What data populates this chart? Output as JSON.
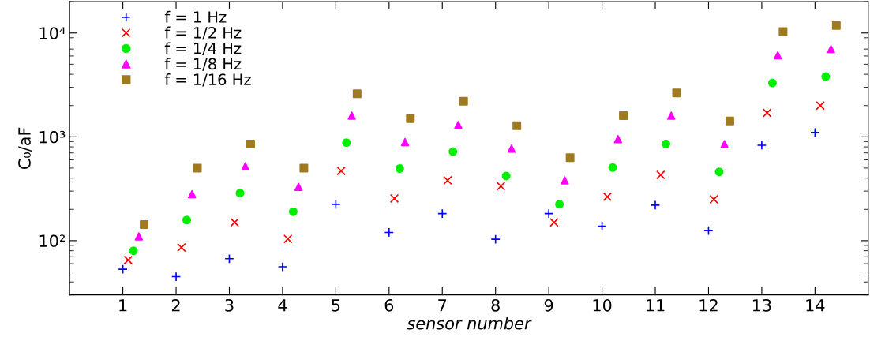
{
  "chart_data": {
    "type": "scatter",
    "xlabel": "sensor number",
    "ylabel": "C₀/aF",
    "log": "y",
    "xlim": [
      0,
      15
    ],
    "xticks": [
      1,
      2,
      3,
      4,
      5,
      6,
      7,
      8,
      9,
      10,
      11,
      12,
      13,
      14
    ],
    "ylim": [
      30,
      20000
    ],
    "yticks": [
      {
        "value": 100,
        "label": "10²"
      },
      {
        "value": 1000,
        "label": "10³"
      },
      {
        "value": 10000,
        "label": "10⁴"
      }
    ],
    "grid": false,
    "legend": "top left",
    "series": [
      {
        "name": "f = 1 Hz",
        "color": "#0000ff",
        "marker": "plus",
        "x": [
          1,
          2,
          3,
          4,
          5,
          6,
          7,
          8,
          9,
          10,
          11,
          12,
          13,
          14
        ],
        "values": [
          53,
          45,
          67,
          56,
          224,
          120,
          182,
          103,
          182,
          138,
          220,
          125,
          830,
          1100
        ]
      },
      {
        "name": "f = 1/2 Hz",
        "color": "#ff0000",
        "marker": "cross",
        "x": [
          1.1,
          2.1,
          3.1,
          4.1,
          5.1,
          6.1,
          7.1,
          8.1,
          9.1,
          10.1,
          11.1,
          12.1,
          13.1,
          14.1
        ],
        "values": [
          65,
          86,
          150,
          104,
          470,
          255,
          380,
          335,
          150,
          265,
          430,
          250,
          1700,
          2000
        ]
      },
      {
        "name": "f = 1/4 Hz",
        "color": "#00ee00",
        "marker": "circle",
        "x": [
          1.2,
          2.2,
          3.2,
          4.2,
          5.2,
          6.2,
          7.2,
          8.2,
          9.2,
          10.2,
          11.2,
          12.2,
          13.2,
          14.2
        ],
        "values": [
          80,
          158,
          287,
          190,
          880,
          495,
          720,
          420,
          224,
          505,
          855,
          460,
          3300,
          3800
        ]
      },
      {
        "name": "f = 1/8 Hz",
        "color": "#ff00ff",
        "marker": "triangle",
        "x": [
          1.3,
          2.3,
          3.3,
          4.3,
          5.3,
          6.3,
          7.3,
          8.3,
          9.3,
          10.3,
          11.3,
          12.3,
          13.3,
          14.3
        ],
        "values": [
          110,
          280,
          520,
          330,
          1600,
          890,
          1300,
          770,
          380,
          950,
          1600,
          850,
          6100,
          7000
        ]
      },
      {
        "name": "f = 1/16 Hz",
        "color": "#a07a20",
        "marker": "square",
        "x": [
          1.4,
          2.4,
          3.4,
          4.4,
          5.4,
          6.4,
          7.4,
          8.4,
          9.4,
          10.4,
          11.4,
          12.4,
          13.4,
          14.4
        ],
        "values": [
          143,
          500,
          850,
          500,
          2600,
          1500,
          2200,
          1280,
          630,
          1600,
          2650,
          1420,
          10300,
          11800
        ]
      }
    ]
  }
}
